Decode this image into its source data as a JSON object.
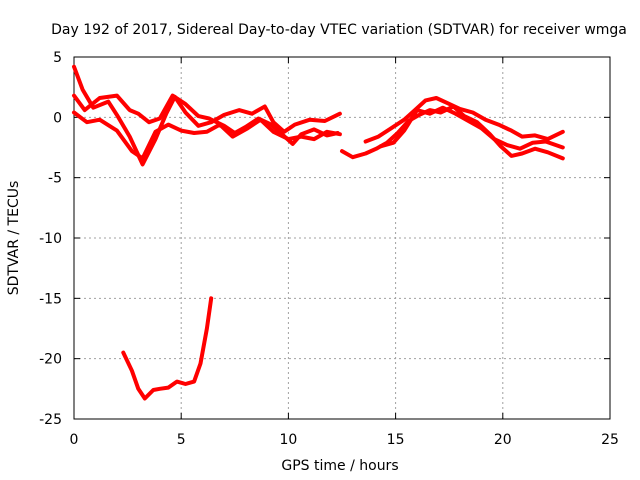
{
  "chart_data": {
    "type": "line",
    "title": "Day 192 of 2017, Sidereal Day-to-day VTEC variation (SDTVAR) for receiver wmga",
    "xlabel": "GPS time / hours",
    "ylabel": "SDTVAR / TECUs",
    "xlim": [
      0,
      25
    ],
    "ylim": [
      -25,
      5
    ],
    "xticks": [
      0,
      5,
      10,
      15,
      20,
      25
    ],
    "yticks": [
      5,
      0,
      -5,
      -10,
      -15,
      -20,
      -25
    ],
    "grid": true,
    "series": [
      {
        "name": "track-1",
        "color": "#ff0000",
        "points": [
          [
            0,
            4.2
          ],
          [
            0.4,
            2.3
          ],
          [
            0.9,
            0.8
          ],
          [
            1.6,
            1.3
          ],
          [
            2.0,
            0.2
          ],
          [
            2.6,
            -1.6
          ],
          [
            3.2,
            -3.9
          ],
          [
            3.8,
            -1.8
          ],
          [
            4.3,
            0.3
          ],
          [
            4.7,
            1.7
          ],
          [
            5.2,
            0.4
          ],
          [
            5.8,
            -0.7
          ],
          [
            6.4,
            -0.4
          ],
          [
            7.0,
            0.2
          ],
          [
            7.7,
            0.6
          ],
          [
            8.3,
            0.3
          ],
          [
            8.9,
            0.9
          ],
          [
            9.3,
            -0.4
          ],
          [
            9.8,
            -1.2
          ],
          [
            10.3,
            -0.6
          ],
          [
            11.0,
            -0.2
          ],
          [
            11.7,
            -0.3
          ],
          [
            12.4,
            0.3
          ]
        ]
      },
      {
        "name": "track-2",
        "color": "#ff0000",
        "points": [
          [
            0,
            1.8
          ],
          [
            0.5,
            0.6
          ],
          [
            1.2,
            1.6
          ],
          [
            2.0,
            1.8
          ],
          [
            2.6,
            0.6
          ],
          [
            3.0,
            0.3
          ],
          [
            3.5,
            -0.4
          ],
          [
            4.0,
            -0.1
          ],
          [
            4.6,
            1.8
          ],
          [
            5.2,
            1.1
          ],
          [
            5.8,
            0.1
          ],
          [
            6.3,
            -0.1
          ],
          [
            7.0,
            -0.7
          ],
          [
            7.5,
            -1.3
          ],
          [
            8.0,
            -0.8
          ],
          [
            8.6,
            -0.1
          ],
          [
            9.2,
            -0.6
          ],
          [
            9.7,
            -1.4
          ],
          [
            10.2,
            -2.2
          ],
          [
            10.6,
            -1.4
          ],
          [
            11.2,
            -1.0
          ],
          [
            11.8,
            -1.5
          ],
          [
            12.3,
            -1.3
          ]
        ]
      },
      {
        "name": "track-3",
        "color": "#ff0000",
        "points": [
          [
            0,
            0.4
          ],
          [
            0.6,
            -0.4
          ],
          [
            1.2,
            -0.2
          ],
          [
            2.0,
            -1.1
          ],
          [
            2.7,
            -2.8
          ],
          [
            3.2,
            -3.4
          ],
          [
            3.8,
            -1.2
          ],
          [
            4.4,
            -0.6
          ],
          [
            5.0,
            -1.1
          ],
          [
            5.6,
            -1.3
          ],
          [
            6.2,
            -1.2
          ],
          [
            6.8,
            -0.6
          ],
          [
            7.4,
            -1.6
          ],
          [
            8.1,
            -0.9
          ],
          [
            8.7,
            -0.2
          ],
          [
            9.3,
            -1.2
          ],
          [
            10.0,
            -1.8
          ],
          [
            10.6,
            -1.6
          ],
          [
            11.2,
            -1.8
          ],
          [
            11.8,
            -1.2
          ],
          [
            12.4,
            -1.4
          ]
        ]
      },
      {
        "name": "track-4",
        "color": "#ff0000",
        "points": [
          [
            12.5,
            -2.8
          ],
          [
            13.0,
            -3.3
          ],
          [
            13.6,
            -3.0
          ],
          [
            14.1,
            -2.6
          ],
          [
            14.6,
            -2.1
          ],
          [
            15.1,
            -1.3
          ],
          [
            15.6,
            -0.3
          ],
          [
            16.1,
            0.2
          ],
          [
            16.6,
            0.6
          ],
          [
            17.1,
            0.4
          ],
          [
            17.7,
            0.9
          ],
          [
            18.2,
            0.1
          ],
          [
            18.8,
            -0.4
          ],
          [
            19.4,
            -1.4
          ],
          [
            19.9,
            -2.4
          ],
          [
            20.4,
            -3.2
          ],
          [
            20.9,
            -3.0
          ],
          [
            21.5,
            -2.6
          ],
          [
            22.1,
            -2.9
          ],
          [
            22.8,
            -3.4
          ]
        ]
      },
      {
        "name": "track-5",
        "color": "#ff0000",
        "points": [
          [
            13.6,
            -2.0
          ],
          [
            14.2,
            -1.6
          ],
          [
            14.8,
            -0.9
          ],
          [
            15.4,
            -0.2
          ],
          [
            15.9,
            0.6
          ],
          [
            16.4,
            1.4
          ],
          [
            16.9,
            1.6
          ],
          [
            17.4,
            1.2
          ],
          [
            18.0,
            0.7
          ],
          [
            18.6,
            0.4
          ],
          [
            19.2,
            -0.2
          ],
          [
            19.8,
            -0.6
          ],
          [
            20.4,
            -1.1
          ],
          [
            20.9,
            -1.6
          ],
          [
            21.5,
            -1.5
          ],
          [
            22.1,
            -1.8
          ],
          [
            22.8,
            -1.2
          ]
        ]
      },
      {
        "name": "track-6",
        "color": "#ff0000",
        "points": [
          [
            14.3,
            -2.4
          ],
          [
            14.9,
            -2.1
          ],
          [
            15.4,
            -1.1
          ],
          [
            16.0,
            0.6
          ],
          [
            16.6,
            0.3
          ],
          [
            17.2,
            0.8
          ],
          [
            17.8,
            0.3
          ],
          [
            18.4,
            -0.3
          ],
          [
            19.0,
            -0.9
          ],
          [
            19.6,
            -1.8
          ],
          [
            20.2,
            -2.3
          ],
          [
            20.8,
            -2.6
          ],
          [
            21.4,
            -2.1
          ],
          [
            22.0,
            -2.0
          ],
          [
            22.8,
            -2.5
          ]
        ]
      },
      {
        "name": "track-7",
        "color": "#ff0000",
        "points": [
          [
            2.3,
            -19.5
          ],
          [
            2.7,
            -21.0
          ],
          [
            3.0,
            -22.5
          ],
          [
            3.3,
            -23.3
          ],
          [
            3.7,
            -22.6
          ],
          [
            4.0,
            -22.5
          ],
          [
            4.4,
            -22.4
          ],
          [
            4.8,
            -21.9
          ],
          [
            5.2,
            -22.1
          ],
          [
            5.6,
            -21.9
          ],
          [
            5.9,
            -20.4
          ],
          [
            6.2,
            -17.5
          ],
          [
            6.4,
            -15.0
          ]
        ]
      }
    ]
  }
}
